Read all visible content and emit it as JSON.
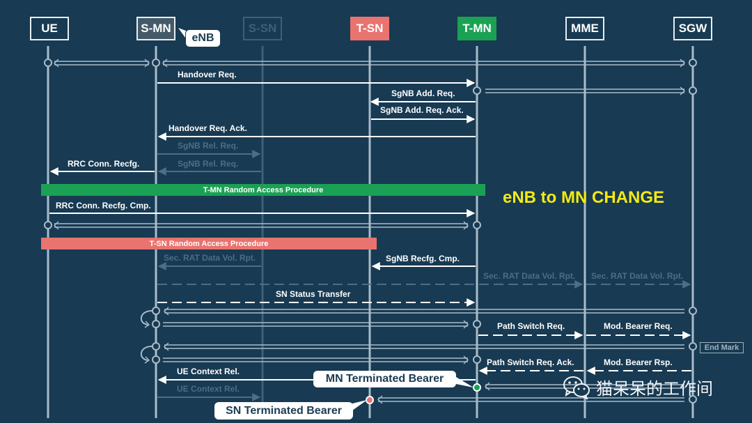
{
  "entities": [
    {
      "key": "ue",
      "label": "UE"
    },
    {
      "key": "smn",
      "label": "S-MN"
    },
    {
      "key": "ssn",
      "label": "S-SN"
    },
    {
      "key": "tsn",
      "label": "T-SN"
    },
    {
      "key": "tmn",
      "label": "T-MN"
    },
    {
      "key": "mme",
      "label": "MME"
    },
    {
      "key": "sgw",
      "label": "SGW"
    }
  ],
  "callouts": {
    "enb": "eNB",
    "mn_bearer": "MN Terminated Bearer",
    "sn_bearer": "SN Terminated Bearer"
  },
  "messages": [
    {
      "label": "Handover Req."
    },
    {
      "label": "SgNB Add. Req."
    },
    {
      "label": "SgNB Add. Req. Ack."
    },
    {
      "label": "Handover Req. Ack."
    },
    {
      "label": "SgNB Rel. Req."
    },
    {
      "label": "RRC Conn. Recfg."
    },
    {
      "label": "SgNB Rel. Req."
    },
    {
      "label": "RRC Conn. Recfg. Cmp."
    },
    {
      "label": "Sec. RAT Data Vol. Rpt."
    },
    {
      "label": "SgNB Recfg. Cmp."
    },
    {
      "label": "Sec. RAT Data Vol. Rpt."
    },
    {
      "label": "Sec. RAT Data Vol. Rpt."
    },
    {
      "label": "SN Status Transfer"
    },
    {
      "label": "Path Switch Req."
    },
    {
      "label": "Mod. Bearer Req."
    },
    {
      "label": "Path Switch Req. Ack."
    },
    {
      "label": "Mod. Bearer Rsp."
    },
    {
      "label": "UE Context Rel."
    },
    {
      "label": "UE Context Rel."
    }
  ],
  "procedures": {
    "tmn_rach": "T-MN Random Access Procedure",
    "tsn_rach": "T-SN Random Access Procedure"
  },
  "headline": "eNB to MN CHANGE",
  "end_mark": "End Mark",
  "watermark": "猫呆呆的工作间",
  "colors": {
    "background": "#183a52",
    "lifeline": "#a9bccb",
    "dim": "#3f6178",
    "green": "#1aa153",
    "red": "#e8736f",
    "yellow": "#f5ea14"
  }
}
